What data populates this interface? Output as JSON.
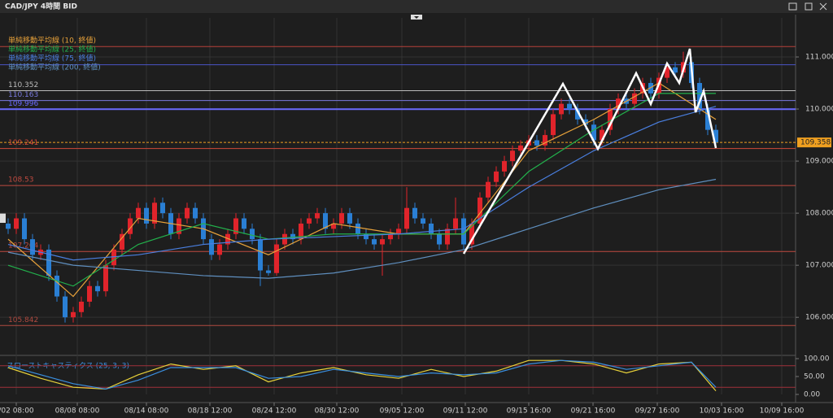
{
  "chart_data": {
    "type": "candlestick",
    "title": "CAD/JPY 4時間 BID",
    "xlim": [
      -1,
      96.8
    ],
    "ylim": [
      105.3,
      111.75
    ],
    "yticks": [
      {
        "value": 106,
        "label": "106.000"
      },
      {
        "value": 107,
        "label": "107.000"
      },
      {
        "value": 108,
        "label": "108.000"
      },
      {
        "value": 109,
        "label": "109.000"
      },
      {
        "value": 110,
        "label": "110.000"
      },
      {
        "value": 111,
        "label": "111.000"
      }
    ],
    "xticks": [
      {
        "value": 1,
        "label": "/02 08:00"
      },
      {
        "value": 8.5,
        "label": "08/08 08:00"
      },
      {
        "value": 17,
        "label": "08/14 08:00"
      },
      {
        "value": 24.8,
        "label": "08/18 12:00"
      },
      {
        "value": 32.7,
        "label": "08/24 12:00"
      },
      {
        "value": 40.4,
        "label": "08/30 12:00"
      },
      {
        "value": 48.4,
        "label": "09/05 12:00"
      },
      {
        "value": 56.2,
        "label": "09/11 12:00"
      },
      {
        "value": 64,
        "label": "09/15 16:00"
      },
      {
        "value": 71.9,
        "label": "09/21 16:00"
      },
      {
        "value": 79.8,
        "label": "09/27 16:00"
      },
      {
        "value": 87.7,
        "label": "10/03 16:00"
      },
      {
        "value": 95.1,
        "label": "10/09 16:00"
      }
    ],
    "up_color": "#e0242b",
    "down_color": "#2a7fd4",
    "ohlc": [
      [
        107.8,
        107.9,
        107.6,
        107.7
      ],
      [
        107.7,
        108.0,
        107.6,
        107.9
      ],
      [
        107.9,
        108.0,
        107.4,
        107.5
      ],
      [
        107.5,
        107.6,
        107.1,
        107.2
      ],
      [
        107.2,
        107.4,
        107.1,
        107.3
      ],
      [
        107.3,
        107.4,
        106.7,
        106.8
      ],
      [
        106.8,
        106.9,
        106.3,
        106.4
      ],
      [
        106.4,
        106.5,
        105.9,
        106.0
      ],
      [
        106.0,
        106.2,
        105.9,
        106.1
      ],
      [
        106.1,
        106.4,
        106.0,
        106.3
      ],
      [
        106.3,
        106.7,
        106.2,
        106.6
      ],
      [
        106.6,
        106.7,
        106.4,
        106.5
      ],
      [
        106.5,
        107.1,
        106.4,
        107.0
      ],
      [
        107.0,
        107.4,
        106.9,
        107.3
      ],
      [
        107.3,
        107.7,
        107.2,
        107.6
      ],
      [
        107.6,
        108.0,
        107.5,
        107.9
      ],
      [
        107.9,
        108.2,
        107.8,
        108.1
      ],
      [
        108.1,
        108.2,
        107.7,
        107.8
      ],
      [
        107.8,
        108.3,
        107.7,
        108.2
      ],
      [
        108.2,
        108.3,
        107.9,
        108.0
      ],
      [
        108.0,
        108.1,
        107.5,
        107.6
      ],
      [
        107.6,
        108.0,
        107.5,
        107.9
      ],
      [
        107.9,
        108.2,
        107.8,
        108.1
      ],
      [
        108.1,
        108.2,
        107.8,
        107.9
      ],
      [
        107.9,
        108.0,
        107.4,
        107.5
      ],
      [
        107.5,
        107.6,
        107.1,
        107.2
      ],
      [
        107.2,
        107.5,
        107.1,
        107.4
      ],
      [
        107.4,
        107.7,
        107.3,
        107.6
      ],
      [
        107.6,
        108.0,
        107.5,
        107.9
      ],
      [
        107.9,
        108.0,
        107.6,
        107.7
      ],
      [
        107.7,
        107.8,
        107.4,
        107.5
      ],
      [
        107.5,
        107.6,
        106.6,
        106.9
      ],
      [
        106.9,
        107.0,
        106.8,
        106.85
      ],
      [
        106.85,
        107.5,
        106.8,
        107.4
      ],
      [
        107.4,
        107.7,
        107.3,
        107.6
      ],
      [
        107.6,
        107.7,
        107.4,
        107.5
      ],
      [
        107.5,
        107.9,
        107.4,
        107.8
      ],
      [
        107.8,
        108.0,
        107.7,
        107.9
      ],
      [
        107.9,
        108.1,
        107.8,
        108.0
      ],
      [
        108.0,
        108.1,
        107.6,
        107.7
      ],
      [
        107.7,
        107.9,
        107.6,
        107.8
      ],
      [
        107.8,
        108.1,
        107.7,
        108.0
      ],
      [
        108.0,
        108.1,
        107.7,
        107.8
      ],
      [
        107.8,
        107.9,
        107.5,
        107.6
      ],
      [
        107.6,
        107.7,
        107.4,
        107.5
      ],
      [
        107.5,
        107.6,
        107.3,
        107.4
      ],
      [
        107.4,
        107.6,
        106.8,
        107.5
      ],
      [
        107.5,
        107.7,
        107.4,
        107.6
      ],
      [
        107.6,
        107.8,
        107.5,
        107.7
      ],
      [
        107.7,
        108.5,
        107.6,
        108.1
      ],
      [
        108.1,
        108.2,
        107.8,
        107.9
      ],
      [
        107.9,
        108.0,
        107.7,
        107.8
      ],
      [
        107.8,
        107.9,
        107.5,
        107.6
      ],
      [
        107.6,
        107.7,
        107.3,
        107.4
      ],
      [
        107.4,
        107.8,
        107.3,
        107.7
      ],
      [
        107.7,
        108.3,
        107.6,
        107.9
      ],
      [
        107.9,
        108.0,
        107.3,
        107.4
      ],
      [
        107.4,
        107.9,
        107.3,
        107.8
      ],
      [
        107.8,
        108.4,
        107.7,
        108.3
      ],
      [
        108.3,
        108.7,
        108.2,
        108.6
      ],
      [
        108.6,
        108.9,
        108.5,
        108.8
      ],
      [
        108.8,
        109.1,
        108.7,
        109.0
      ],
      [
        109.0,
        109.3,
        108.9,
        109.2
      ],
      [
        109.2,
        109.4,
        109.1,
        109.3
      ],
      [
        109.3,
        109.5,
        109.2,
        109.4
      ],
      [
        109.4,
        109.5,
        109.2,
        109.3
      ],
      [
        109.3,
        109.6,
        109.2,
        109.5
      ],
      [
        109.5,
        110.0,
        109.4,
        109.9
      ],
      [
        109.9,
        110.2,
        109.8,
        110.1
      ],
      [
        110.1,
        110.2,
        109.9,
        110.0
      ],
      [
        110.0,
        110.1,
        109.7,
        109.8
      ],
      [
        109.8,
        109.9,
        109.6,
        109.7
      ],
      [
        109.7,
        109.8,
        109.3,
        109.4
      ],
      [
        109.4,
        109.7,
        109.3,
        109.6
      ],
      [
        109.6,
        110.1,
        109.5,
        110.0
      ],
      [
        110.0,
        110.3,
        109.9,
        110.2
      ],
      [
        110.2,
        110.3,
        110.0,
        110.1
      ],
      [
        110.1,
        110.4,
        110.0,
        110.3
      ],
      [
        110.3,
        110.6,
        110.2,
        110.5
      ],
      [
        110.5,
        110.6,
        110.2,
        110.3
      ],
      [
        110.3,
        110.7,
        110.2,
        110.6
      ],
      [
        110.6,
        110.9,
        110.5,
        110.8
      ],
      [
        110.8,
        110.9,
        110.6,
        110.7
      ],
      [
        110.7,
        111.1,
        110.6,
        110.9
      ],
      [
        110.9,
        111.0,
        110.4,
        110.5
      ],
      [
        110.5,
        110.6,
        109.9,
        110.0
      ],
      [
        110.0,
        110.1,
        109.5,
        109.6
      ],
      [
        109.6,
        109.7,
        109.3,
        109.36
      ]
    ],
    "series": [
      {
        "name": "単純移動平均線 (10, 終値)",
        "color": "#e8a23a",
        "x": [
          0,
          8,
          16,
          24,
          32,
          40,
          48,
          56,
          64,
          72,
          80,
          87
        ],
        "values": [
          107.5,
          106.4,
          107.9,
          107.7,
          107.2,
          107.8,
          107.6,
          107.6,
          109.2,
          109.8,
          110.5,
          109.8
        ]
      },
      {
        "name": "単純移動平均線 (25, 終値)",
        "color": "#22b14c",
        "x": [
          0,
          8,
          16,
          24,
          32,
          40,
          48,
          56,
          64,
          72,
          80,
          87
        ],
        "values": [
          107.0,
          106.6,
          107.4,
          107.8,
          107.5,
          107.6,
          107.6,
          107.6,
          108.8,
          109.6,
          110.3,
          110.3
        ]
      },
      {
        "name": "単純移動平均線 (75, 終値)",
        "color": "#4a7fe0",
        "x": [
          0,
          8,
          16,
          24,
          32,
          40,
          48,
          56,
          64,
          72,
          80,
          87
        ],
        "values": [
          107.4,
          107.1,
          107.2,
          107.4,
          107.5,
          107.55,
          107.6,
          107.7,
          108.5,
          109.2,
          109.75,
          110.05
        ]
      },
      {
        "name": "単純移動平均線 (200, 終値)",
        "color": "#5f8fbf",
        "x": [
          0,
          8,
          16,
          24,
          32,
          40,
          48,
          56,
          64,
          72,
          80,
          87
        ],
        "values": [
          107.25,
          107.0,
          106.9,
          106.8,
          106.75,
          106.85,
          107.05,
          107.3,
          107.7,
          108.1,
          108.45,
          108.65
        ]
      }
    ],
    "levels": [
      {
        "value": 111.2,
        "color": "#b5403a"
      },
      {
        "value": 110.85,
        "color": "#4a56c8"
      },
      {
        "value": 110.352,
        "color": "#bbbbbb",
        "labeled": true
      },
      {
        "value": 110.163,
        "color": "#7a7ae0",
        "labeled": true
      },
      {
        "value": 109.996,
        "color": "#6a6aff",
        "labeled": true
      },
      {
        "value": 109.241,
        "color": "#d04a3a",
        "labeled": true
      },
      {
        "value": 108.53,
        "color": "#c04a40",
        "labeled": true
      },
      {
        "value": 107.264,
        "color": "#c04a40",
        "labeled": true
      },
      {
        "value": 105.842,
        "color": "#b04a40",
        "labeled": true
      }
    ],
    "current_price": {
      "value": 109.358,
      "color": "#f0a020"
    },
    "oscillator": {
      "type": "line",
      "title": "スローストキャスティクス (25, 3, 3)",
      "ylim": [
        0,
        100
      ],
      "yticks": [
        {
          "value": 0,
          "label": "0.00"
        },
        {
          "value": 50,
          "label": "50.00"
        },
        {
          "value": 100,
          "label": "100.00"
        }
      ],
      "levels": [
        20,
        80
      ],
      "level_color": "#a0303a",
      "x": [
        0,
        4,
        8,
        12,
        16,
        20,
        24,
        28,
        32,
        36,
        40,
        44,
        48,
        52,
        56,
        60,
        64,
        68,
        72,
        76,
        80,
        84,
        87
      ],
      "series": [
        {
          "color": "#e8d23a",
          "values": [
            75,
            45,
            20,
            15,
            55,
            85,
            70,
            80,
            35,
            60,
            75,
            55,
            45,
            70,
            50,
            65,
            95,
            95,
            85,
            60,
            85,
            90,
            10
          ]
        },
        {
          "color": "#3a8fe0",
          "values": [
            80,
            55,
            30,
            15,
            40,
            75,
            75,
            75,
            45,
            50,
            70,
            60,
            50,
            60,
            55,
            60,
            85,
            95,
            90,
            70,
            80,
            90,
            20
          ]
        }
      ]
    }
  }
}
